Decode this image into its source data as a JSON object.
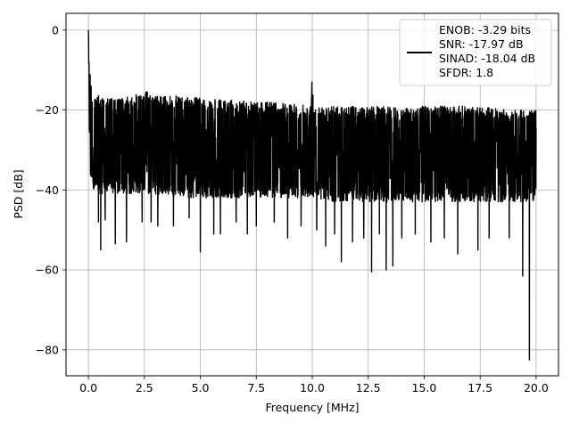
{
  "chart_data": {
    "type": "line",
    "title": "",
    "xlabel": "Frequency [MHz]",
    "ylabel": "PSD [dB]",
    "xlim": [
      -1.0,
      21.0
    ],
    "ylim": [
      -86.5,
      4.2
    ],
    "xticks": [
      0.0,
      2.5,
      5.0,
      7.5,
      10.0,
      12.5,
      15.0,
      17.5,
      20.0
    ],
    "xtick_labels": [
      "0.0",
      "2.5",
      "5.0",
      "7.5",
      "10.0",
      "12.5",
      "15.0",
      "17.5",
      "20.0"
    ],
    "yticks": [
      0,
      -20,
      -40,
      -60,
      -80
    ],
    "ytick_labels": [
      "0",
      "−20",
      "−40",
      "−60",
      "−80"
    ],
    "grid": true,
    "legend_position": "top-right",
    "legend_lines": [
      "ENOB: -3.29 bits",
      "SNR: -17.97 dB",
      "SINAD: -18.04 dB",
      "SFDR: 1.8"
    ],
    "series_color": "#000000",
    "grid_color": "#b0b0b0",
    "series": [
      {
        "name": "",
        "x": [
          0.0,
          0.02,
          0.05,
          0.08,
          0.12,
          0.18,
          0.25,
          0.35,
          0.5,
          0.75,
          1.0,
          1.5,
          2.0,
          2.5,
          3.0,
          4.0,
          5.0,
          6.0,
          7.0,
          8.0,
          9.0,
          9.95,
          10.0,
          10.05,
          11.0,
          12.0,
          12.5,
          13.0,
          14.0,
          15.0,
          16.0,
          17.0,
          18.0,
          19.0,
          19.5,
          19.7,
          19.9,
          20.0
        ],
        "upper": [
          0.0,
          -5.0,
          -8.0,
          -10.0,
          -13.0,
          -14.5,
          -15.5,
          -16.0,
          -16.5,
          -17.0,
          -17.0,
          -17.0,
          -16.5,
          -15.0,
          -16.5,
          -16.5,
          -17.0,
          -17.5,
          -17.5,
          -18.0,
          -18.5,
          -18.5,
          -10.0,
          -18.5,
          -19.0,
          -19.0,
          -19.0,
          -19.0,
          -19.5,
          -19.0,
          -19.0,
          -19.0,
          -19.5,
          -20.0,
          -20.0,
          -20.0,
          -20.0,
          -18.0
        ],
        "lower": [
          -10.0,
          -20.0,
          -30.0,
          -37.0,
          -38.0,
          -39.0,
          -40.0,
          -41.0,
          -41.0,
          -41.0,
          -41.0,
          -41.0,
          -41.0,
          -41.0,
          -41.0,
          -42.0,
          -42.0,
          -42.0,
          -42.0,
          -42.0,
          -42.0,
          -42.0,
          -42.0,
          -42.0,
          -43.0,
          -43.0,
          -43.0,
          -43.0,
          -43.0,
          -43.0,
          -43.0,
          -43.0,
          -43.0,
          -43.0,
          -43.0,
          -43.0,
          -43.0,
          -40.0
        ],
        "dips": [
          [
            0.45,
            -48
          ],
          [
            0.55,
            -55
          ],
          [
            0.75,
            -47.5
          ],
          [
            1.2,
            -53.5
          ],
          [
            1.7,
            -53
          ],
          [
            2.4,
            -48
          ],
          [
            2.8,
            -48
          ],
          [
            3.1,
            -49
          ],
          [
            3.8,
            -49
          ],
          [
            4.5,
            -47
          ],
          [
            5.0,
            -55.5
          ],
          [
            5.6,
            -51
          ],
          [
            5.9,
            -51
          ],
          [
            6.6,
            -48
          ],
          [
            7.1,
            -51
          ],
          [
            7.5,
            -49
          ],
          [
            8.3,
            -48
          ],
          [
            8.9,
            -52
          ],
          [
            9.5,
            -49
          ],
          [
            10.2,
            -50
          ],
          [
            10.6,
            -54
          ],
          [
            11.0,
            -51
          ],
          [
            11.3,
            -58
          ],
          [
            11.8,
            -53
          ],
          [
            12.3,
            -52
          ],
          [
            12.65,
            -60.5
          ],
          [
            13.0,
            -51
          ],
          [
            13.3,
            -60
          ],
          [
            13.6,
            -59
          ],
          [
            14.0,
            -52
          ],
          [
            14.6,
            -51
          ],
          [
            15.3,
            -53
          ],
          [
            15.9,
            -52
          ],
          [
            16.5,
            -56
          ],
          [
            17.4,
            -55
          ],
          [
            17.9,
            -52
          ],
          [
            18.8,
            -52
          ],
          [
            19.4,
            -61.5
          ],
          [
            19.7,
            -82.5
          ]
        ]
      }
    ]
  }
}
